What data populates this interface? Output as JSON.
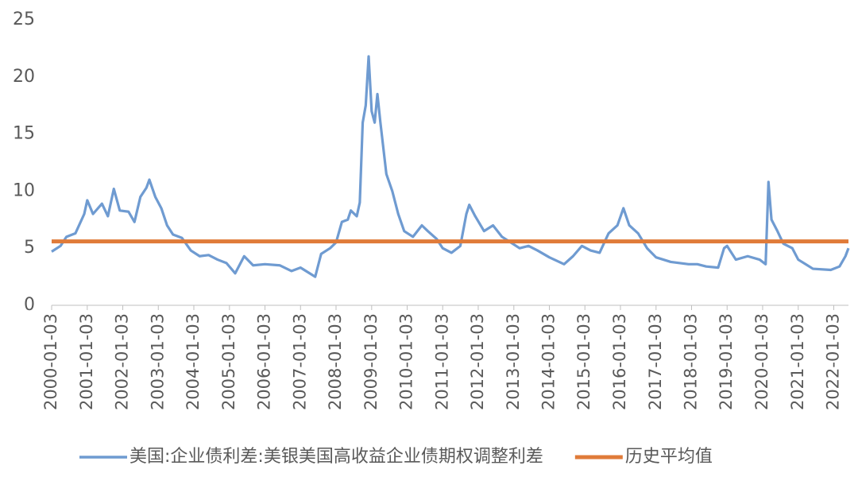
{
  "chart_data": {
    "type": "line",
    "x": [
      "2000-01-03",
      "2000-04-03",
      "2000-06-03",
      "2000-09-03",
      "2000-12-03",
      "2001-01-03",
      "2001-03-03",
      "2001-06-03",
      "2001-08-03",
      "2001-10-03",
      "2001-12-03",
      "2002-03-03",
      "2002-05-03",
      "2002-07-03",
      "2002-09-03",
      "2002-10-03",
      "2002-12-03",
      "2003-02-03",
      "2003-04-03",
      "2003-06-03",
      "2003-09-03",
      "2003-12-03",
      "2004-03-03",
      "2004-06-03",
      "2004-09-03",
      "2004-12-03",
      "2005-03-03",
      "2005-06-03",
      "2005-09-03",
      "2006-01-03",
      "2006-06-03",
      "2006-10-03",
      "2007-01-03",
      "2007-06-03",
      "2007-08-03",
      "2007-11-03",
      "2008-01-03",
      "2008-03-03",
      "2008-05-03",
      "2008-06-03",
      "2008-08-03",
      "2008-09-03",
      "2008-10-03",
      "2008-11-03",
      "2008-12-03",
      "2009-01-03",
      "2009-02-03",
      "2009-03-03",
      "2009-04-03",
      "2009-06-03",
      "2009-08-03",
      "2009-10-03",
      "2009-12-03",
      "2010-03-03",
      "2010-06-03",
      "2010-08-03",
      "2010-11-03",
      "2011-01-03",
      "2011-04-03",
      "2011-07-03",
      "2011-09-03",
      "2011-10-03",
      "2011-12-03",
      "2012-03-03",
      "2012-06-03",
      "2012-09-03",
      "2012-12-03",
      "2013-03-03",
      "2013-06-03",
      "2013-09-03",
      "2014-01-03",
      "2014-06-03",
      "2014-09-03",
      "2014-12-03",
      "2015-03-03",
      "2015-06-03",
      "2015-09-03",
      "2015-12-03",
      "2016-02-03",
      "2016-04-03",
      "2016-07-03",
      "2016-10-03",
      "2017-01-03",
      "2017-06-03",
      "2017-12-03",
      "2018-03-03",
      "2018-06-03",
      "2018-10-03",
      "2018-12-03",
      "2019-01-03",
      "2019-04-03",
      "2019-08-03",
      "2019-12-03",
      "2020-02-03",
      "2020-03-03",
      "2020-04-03",
      "2020-06-03",
      "2020-08-03",
      "2020-11-03",
      "2021-01-03",
      "2021-06-03",
      "2021-12-03",
      "2022-03-03",
      "2022-05-03",
      "2022-06-03"
    ],
    "series": [
      {
        "name": "美国:企业债利差:美银美国高收益企业债期权调整利差",
        "color": "#6f9bd1",
        "values": [
          4.7,
          5.2,
          6.0,
          6.3,
          8.0,
          9.2,
          8.0,
          8.9,
          7.8,
          10.2,
          8.3,
          8.2,
          7.3,
          9.5,
          10.3,
          11.0,
          9.5,
          8.5,
          7.0,
          6.2,
          5.9,
          4.8,
          4.3,
          4.4,
          4.0,
          3.7,
          2.8,
          4.3,
          3.5,
          3.6,
          3.5,
          3.0,
          3.3,
          2.5,
          4.5,
          5.0,
          5.5,
          7.3,
          7.5,
          8.3,
          7.8,
          9.0,
          16.0,
          17.5,
          21.8,
          17.0,
          16.0,
          18.5,
          16.0,
          11.5,
          10.0,
          8.0,
          6.5,
          6.0,
          7.0,
          6.5,
          5.8,
          5.0,
          4.6,
          5.2,
          8.0,
          8.8,
          7.8,
          6.5,
          7.0,
          6.0,
          5.5,
          5.0,
          5.2,
          4.8,
          4.2,
          3.6,
          4.3,
          5.2,
          4.8,
          4.6,
          6.3,
          7.0,
          8.5,
          7.0,
          6.3,
          5.0,
          4.2,
          3.8,
          3.6,
          3.6,
          3.4,
          3.3,
          5.0,
          5.2,
          4.0,
          4.3,
          4.0,
          3.6,
          10.8,
          7.5,
          6.5,
          5.4,
          5.0,
          4.0,
          3.2,
          3.1,
          3.4,
          4.3,
          5.0
        ]
      },
      {
        "name": "历史平均值",
        "color": "#e07b39",
        "values": [
          5.6,
          5.6,
          5.6,
          5.6,
          5.6,
          5.6,
          5.6,
          5.6,
          5.6,
          5.6,
          5.6,
          5.6,
          5.6,
          5.6,
          5.6,
          5.6,
          5.6,
          5.6,
          5.6,
          5.6,
          5.6,
          5.6,
          5.6,
          5.6,
          5.6,
          5.6,
          5.6,
          5.6,
          5.6,
          5.6,
          5.6,
          5.6,
          5.6,
          5.6,
          5.6,
          5.6,
          5.6,
          5.6,
          5.6,
          5.6,
          5.6,
          5.6,
          5.6,
          5.6,
          5.6,
          5.6,
          5.6,
          5.6,
          5.6,
          5.6,
          5.6,
          5.6,
          5.6,
          5.6,
          5.6,
          5.6,
          5.6,
          5.6,
          5.6,
          5.6,
          5.6,
          5.6,
          5.6,
          5.6,
          5.6,
          5.6,
          5.6,
          5.6,
          5.6,
          5.6,
          5.6,
          5.6,
          5.6,
          5.6,
          5.6,
          5.6,
          5.6,
          5.6,
          5.6,
          5.6,
          5.6,
          5.6,
          5.6,
          5.6,
          5.6,
          5.6,
          5.6,
          5.6,
          5.6,
          5.6,
          5.6,
          5.6,
          5.6,
          5.6,
          5.6,
          5.6,
          5.6,
          5.6,
          5.6,
          5.6,
          5.6,
          5.6,
          5.6,
          5.6,
          5.6
        ]
      }
    ],
    "xlim": [
      "2000-01-03",
      "2022-06-03"
    ],
    "xticks": [
      "2000-01-03",
      "2001-01-03",
      "2002-01-03",
      "2003-01-03",
      "2004-01-03",
      "2005-01-03",
      "2006-01-03",
      "2007-01-03",
      "2008-01-03",
      "2009-01-03",
      "2010-01-03",
      "2011-01-03",
      "2012-01-03",
      "2013-01-03",
      "2014-01-03",
      "2015-01-03",
      "2016-01-03",
      "2017-01-03",
      "2018-01-03",
      "2019-01-03",
      "2020-01-03",
      "2021-01-03",
      "2022-01-03"
    ],
    "ylim": [
      0,
      25
    ],
    "yticks": [
      0,
      5,
      10,
      15,
      20,
      25
    ],
    "grid": false,
    "legend": "bottom"
  }
}
